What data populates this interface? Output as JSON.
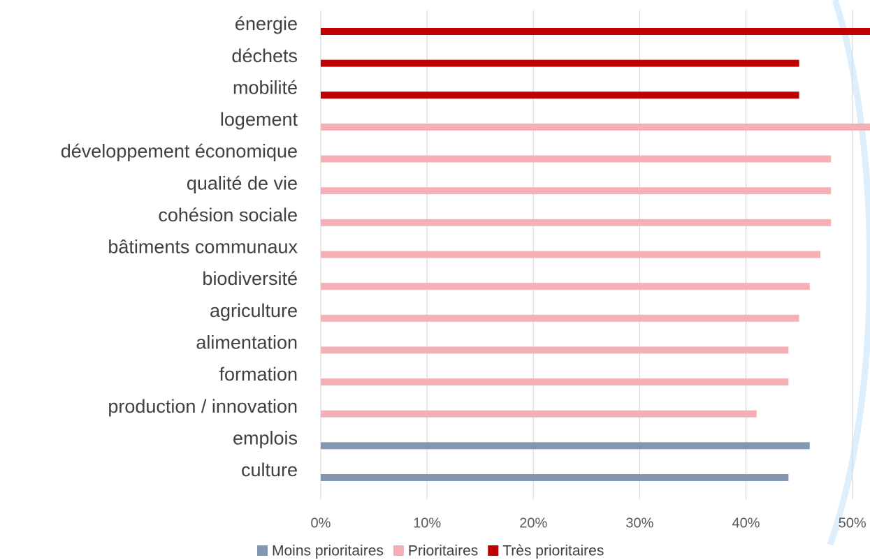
{
  "chart_data": {
    "type": "bar",
    "orientation": "horizontal",
    "categories": [
      "énergie",
      "déchets",
      "mobilité",
      "logement",
      "développement économique",
      "qualité de vie",
      "cohésion sociale",
      "bâtiments communaux",
      "biodiversité",
      "agriculture",
      "alimentation",
      "formation",
      "production / innovation",
      "emplois",
      "culture"
    ],
    "series": [
      {
        "name": "Moins prioritaires",
        "color": "#8497b0",
        "values": [
          null,
          null,
          null,
          null,
          null,
          null,
          null,
          null,
          null,
          null,
          null,
          null,
          null,
          46,
          44
        ]
      },
      {
        "name": "Prioritaires",
        "color": "#f4b0b5",
        "values": [
          null,
          null,
          null,
          52,
          48,
          48,
          48,
          47,
          46,
          45,
          44,
          44,
          41,
          null,
          null
        ]
      },
      {
        "name": "Très prioritaires",
        "color": "#c00000",
        "values": [
          52,
          45,
          45,
          null,
          null,
          null,
          null,
          null,
          null,
          null,
          null,
          null,
          null,
          null,
          null
        ]
      }
    ],
    "xlim": [
      0,
      51.6
    ],
    "xticks": [
      {
        "value": 0,
        "label": "0%"
      },
      {
        "value": 10,
        "label": "10%"
      },
      {
        "value": 20,
        "label": "20%"
      },
      {
        "value": 30,
        "label": "30%"
      },
      {
        "value": 40,
        "label": "40%"
      },
      {
        "value": 50,
        "label": "50%"
      }
    ],
    "grid": true,
    "legend": "bottom"
  }
}
